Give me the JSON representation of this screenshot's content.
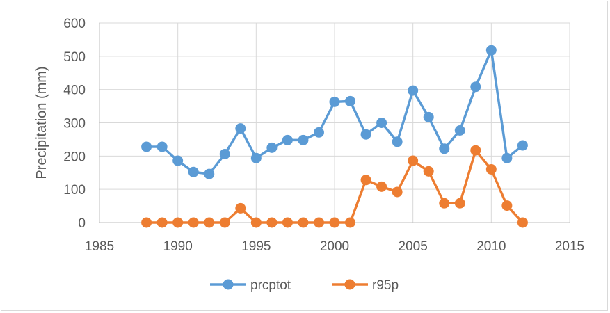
{
  "chart_data": {
    "type": "line",
    "title": "",
    "xlabel": "",
    "ylabel": "Precipitation (mm)",
    "xlim": [
      1985,
      2015
    ],
    "ylim": [
      0,
      600
    ],
    "xticks": [
      1985,
      1990,
      1995,
      2000,
      2005,
      2010,
      2015
    ],
    "yticks": [
      0,
      100,
      200,
      300,
      400,
      500,
      600
    ],
    "grid": true,
    "legend_position": "bottom",
    "x": [
      1988,
      1989,
      1990,
      1991,
      1992,
      1993,
      1994,
      1995,
      1996,
      1997,
      1998,
      1999,
      2000,
      2001,
      2002,
      2003,
      2004,
      2005,
      2006,
      2007,
      2008,
      2009,
      2010,
      2011,
      2012
    ],
    "series": [
      {
        "name": "prcptot",
        "color": "#5b9bd5",
        "values": [
          228,
          228,
          186,
          152,
          146,
          206,
          283,
          194,
          225,
          248,
          248,
          271,
          363,
          365,
          265,
          300,
          243,
          397,
          317,
          222,
          277,
          408,
          518,
          194,
          232
        ]
      },
      {
        "name": "r95p",
        "color": "#ed7d31",
        "values": [
          0,
          0,
          0,
          0,
          0,
          0,
          43,
          0,
          0,
          0,
          0,
          0,
          0,
          0,
          128,
          108,
          92,
          186,
          154,
          58,
          58,
          217,
          160,
          51,
          0
        ]
      }
    ]
  }
}
